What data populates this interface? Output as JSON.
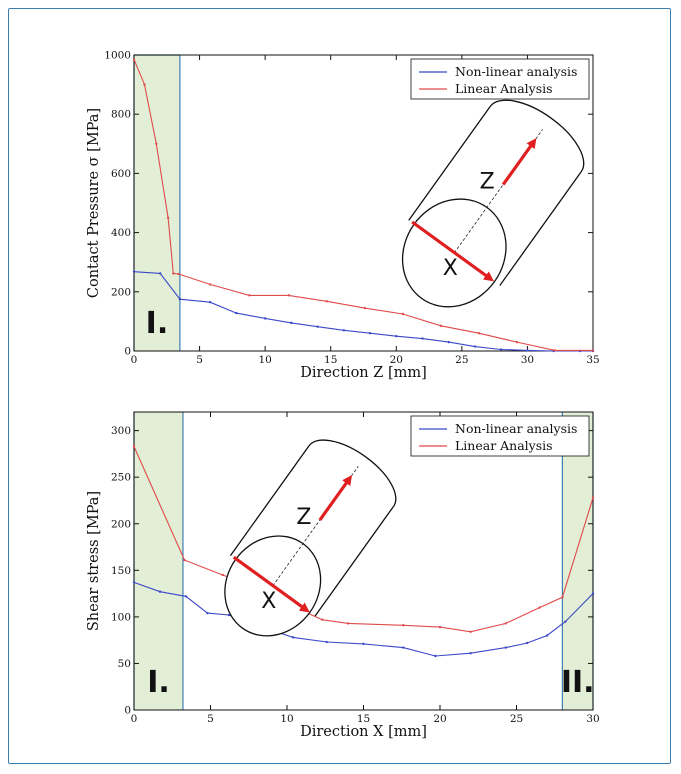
{
  "chart_data": [
    {
      "type": "line",
      "xlabel": "Direction Z [mm]",
      "ylabel": "Contact Pressure σ [MPa]",
      "xlim": [
        0,
        35
      ],
      "ylim": [
        0,
        1000
      ],
      "xticks": [
        0,
        5,
        10,
        15,
        20,
        25,
        30,
        35
      ],
      "yticks": [
        0,
        200,
        400,
        600,
        800,
        1000
      ],
      "grid": false,
      "legend_position": "top-right",
      "shaded_regions": [
        {
          "label": "I.",
          "x": [
            0,
            3.5
          ]
        }
      ],
      "inset": {
        "axis_labels": [
          "Z",
          "X"
        ]
      },
      "series": [
        {
          "name": "Non-linear analysis",
          "color": "#3b48c8",
          "x": [
            0,
            2.0,
            3.5,
            5.8,
            7.8,
            10,
            12,
            14,
            16,
            18,
            20,
            22,
            24,
            26,
            28,
            30,
            32,
            34,
            35
          ],
          "y": [
            268,
            262,
            175,
            165,
            128,
            110,
            95,
            82,
            70,
            60,
            50,
            42,
            30,
            15,
            5,
            2,
            0,
            0,
            0
          ]
        },
        {
          "name": "Linear Analysis",
          "color": "#e04a4a",
          "x": [
            0,
            0.8,
            1.7,
            2.6,
            3.0,
            3.4,
            5.8,
            8.8,
            11.8,
            14.7,
            17.6,
            20.5,
            23.4,
            26.3,
            29.2,
            32.1,
            35
          ],
          "y": [
            985,
            900,
            700,
            450,
            262,
            260,
            225,
            188,
            188,
            168,
            145,
            125,
            85,
            60,
            30,
            2,
            2
          ]
        }
      ]
    },
    {
      "type": "line",
      "xlabel": "Direction X [mm]",
      "ylabel": "Shear stress [MPa]",
      "xlim": [
        0,
        30
      ],
      "ylim": [
        0,
        320
      ],
      "xticks": [
        0,
        5,
        10,
        15,
        20,
        25,
        30
      ],
      "yticks": [
        0,
        50,
        100,
        150,
        200,
        250,
        300
      ],
      "grid": false,
      "legend_position": "top-right",
      "shaded_regions": [
        {
          "label": "I.",
          "x": [
            0,
            3.2
          ]
        },
        {
          "label": "II.",
          "x": [
            28,
            30
          ]
        }
      ],
      "inset": {
        "axis_labels": [
          "Z",
          "X"
        ]
      },
      "series": [
        {
          "name": "Non-linear analysis",
          "color": "#3b48c8",
          "x": [
            0,
            1.7,
            3.4,
            4.8,
            6.2,
            8,
            10.4,
            12.6,
            15,
            17.6,
            19.7,
            22,
            24.3,
            25.7,
            27,
            28.2,
            30
          ],
          "y": [
            137,
            127,
            122,
            104,
            102,
            91,
            78,
            73,
            71,
            67,
            58,
            61,
            67,
            72,
            80,
            95,
            125
          ]
        },
        {
          "name": "Linear Analysis",
          "color": "#e04a4a",
          "x": [
            0,
            3.3,
            5.8,
            7.5,
            9.6,
            12.3,
            14,
            17.6,
            20,
            22,
            24.3,
            26.5,
            28,
            30
          ],
          "y": [
            283,
            161,
            145,
            135,
            117,
            97,
            93,
            91,
            89,
            84,
            93,
            110,
            121,
            228
          ]
        }
      ]
    }
  ]
}
